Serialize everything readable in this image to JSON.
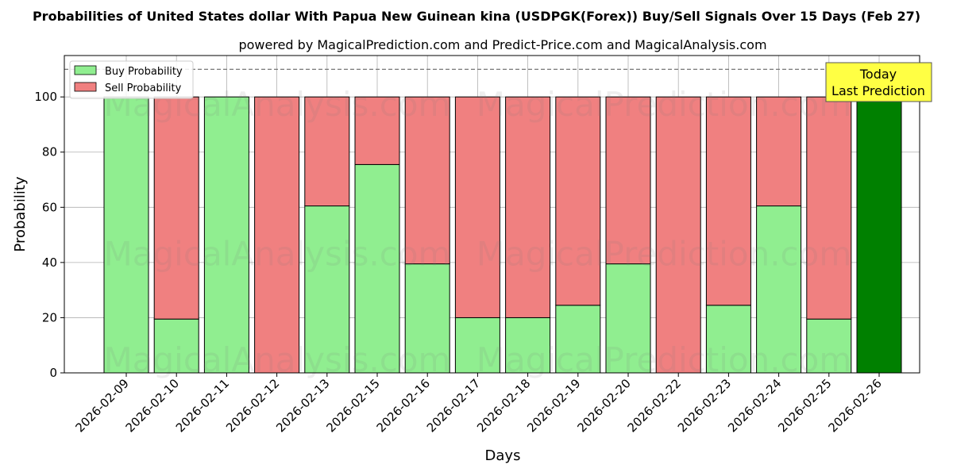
{
  "chart_data": {
    "type": "bar",
    "stacked": true,
    "title": "Probabilities of United States dollar With Papua New Guinean kina (USDPGK(Forex)) Buy/Sell Signals Over 15 Days (Feb 27)",
    "subtitle": "powered by MagicalPrediction.com and Predict-Price.com and MagicalAnalysis.com",
    "xlabel": "Days",
    "ylabel": "Probability",
    "ylim": [
      0,
      115
    ],
    "yticks": [
      0,
      20,
      40,
      60,
      80,
      100
    ],
    "reference_line": 110,
    "grid": true,
    "legend_position": "top-left",
    "categories": [
      "2026-02-09",
      "2026-02-10",
      "2026-02-11",
      "2026-02-12",
      "2026-02-13",
      "2026-02-15",
      "2026-02-16",
      "2026-02-17",
      "2026-02-18",
      "2026-02-19",
      "2026-02-20",
      "2026-02-22",
      "2026-02-23",
      "2026-02-24",
      "2026-02-25",
      "2026-02-26"
    ],
    "series": [
      {
        "name": "Buy Probability",
        "color": "#90ee90",
        "values": [
          100,
          19.5,
          100,
          0,
          60.5,
          75.5,
          39.5,
          20,
          20,
          24.5,
          39.5,
          0,
          24.5,
          60.5,
          19.5,
          100
        ]
      },
      {
        "name": "Sell Probability",
        "color": "#f08080",
        "values": [
          0,
          80.5,
          0,
          100,
          39.5,
          24.5,
          60.5,
          80,
          80,
          75.5,
          60.5,
          100,
          75.5,
          39.5,
          80.5,
          0
        ]
      }
    ],
    "highlight": {
      "index": 15,
      "color": "#008000"
    },
    "annotation": {
      "line1": "Today",
      "line2": "Last Prediction",
      "background": "#ffff44"
    },
    "watermarks": [
      "MagicalAnalysis.com",
      "MagicalPrediction.com"
    ]
  }
}
